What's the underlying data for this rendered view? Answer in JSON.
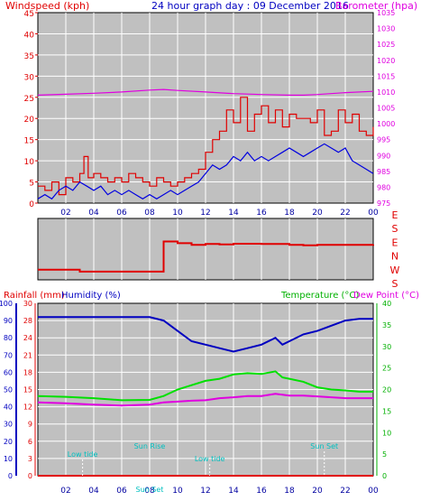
{
  "header": {
    "left_label": "Windspeed (kph)",
    "center_label": "24 hour graph day : 09 December 2016",
    "right_label": "Barometer (hpa)"
  },
  "colors": {
    "panel_bg": "#c0c0c0",
    "grid": "#ffffff",
    "wind_gust": "#e00000",
    "wind_avg": "#0000e0",
    "barometer": "#e000e0",
    "direction": "#e00000",
    "humidity": "#0000c0",
    "temperature": "#00e000",
    "dewpoint": "#e000e0",
    "rain": "#e00000",
    "sun_events": "#00c0c0"
  },
  "x_ticks": [
    "02",
    "04",
    "06",
    "08",
    "10",
    "12",
    "14",
    "16",
    "18",
    "20",
    "22",
    "00"
  ],
  "panel1": {
    "left_axis_ticks": [
      "45",
      "40",
      "35",
      "30",
      "25",
      "20",
      "15",
      "10",
      "5",
      "0"
    ],
    "right_axis_ticks": [
      "1035",
      "1030",
      "1025",
      "1020",
      "1015",
      "1010",
      "1005",
      "1000",
      "995",
      "990",
      "985",
      "980",
      "975"
    ]
  },
  "panel2": {
    "direction_labels": [
      "E",
      "S",
      "E",
      "N",
      "W",
      "S"
    ]
  },
  "panel3": {
    "left_label_a": "Rainfall (mm)",
    "left_label_b": "Humidity (%)",
    "right_label_a": "Temperature (°C)",
    "right_label_b": "Dew Point (°C)",
    "humidity_ticks": [
      "100",
      "90",
      "80",
      "70",
      "60",
      "50",
      "40",
      "30",
      "20",
      "10",
      "0"
    ],
    "rain_ticks": [
      "30",
      "28",
      "24",
      "21",
      "18",
      "15",
      "12",
      "9",
      "6",
      "3",
      "0"
    ],
    "temp_ticks": [
      "40",
      "35",
      "30",
      "25",
      "20",
      "15",
      "10",
      "5",
      "0"
    ],
    "events": [
      {
        "label": "Low tide",
        "x": 3.2,
        "y": "low"
      },
      {
        "label": "Sun Rise",
        "x": 8.0,
        "y": "high"
      },
      {
        "label": "Sun Set",
        "x": 8.0,
        "y": "bottom"
      },
      {
        "label": "Low tide",
        "x": 12.3,
        "y": "mid"
      },
      {
        "label": "Sun Set",
        "x": 20.5,
        "y": "high"
      }
    ]
  },
  "chart_data": [
    {
      "type": "line",
      "title": "24 hour graph day : 09 December 2016",
      "x_range_hours": [
        0,
        24
      ],
      "ylabel": "Windspeed (kph)",
      "ylim": [
        0,
        45
      ],
      "y2label": "Barometer (hpa)",
      "y2lim": [
        975,
        1035
      ],
      "series": [
        {
          "axis": "left",
          "color": "#e00000",
          "x": [
            0,
            0.5,
            1,
            1.5,
            2,
            2.5,
            3,
            3.3,
            3.6,
            4,
            4.5,
            5,
            5.5,
            6,
            6.5,
            7,
            7.5,
            8,
            8.5,
            9,
            9.5,
            10,
            10.5,
            11,
            11.5,
            12,
            12.5,
            13,
            13.5,
            14,
            14.5,
            15,
            15.5,
            16,
            16.5,
            17,
            17.5,
            18,
            18.5,
            19,
            19.5,
            20,
            20.5,
            21,
            21.5,
            22,
            22.5,
            23,
            23.5,
            24
          ],
          "values": [
            4,
            3,
            5,
            2,
            6,
            5,
            7,
            11,
            6,
            7,
            6,
            5,
            6,
            5,
            7,
            6,
            5,
            4,
            6,
            5,
            4,
            5,
            6,
            7,
            8,
            12,
            15,
            17,
            22,
            19,
            25,
            17,
            21,
            23,
            19,
            22,
            18,
            21,
            20,
            20,
            19,
            22,
            16,
            17,
            22,
            19,
            21,
            17,
            16,
            18
          ]
        },
        {
          "axis": "left",
          "color": "#0000e0",
          "x": [
            0,
            0.5,
            1,
            1.5,
            2,
            2.5,
            3,
            3.5,
            4,
            4.5,
            5,
            5.5,
            6,
            6.5,
            7,
            7.5,
            8,
            8.5,
            9,
            9.5,
            10,
            10.5,
            11,
            11.5,
            12,
            12.5,
            13,
            13.5,
            14,
            14.5,
            15,
            15.5,
            16,
            16.5,
            17,
            17.5,
            18,
            18.5,
            19,
            19.5,
            20,
            20.5,
            21,
            21.5,
            22,
            22.5,
            23,
            23.5,
            24
          ],
          "values": [
            1,
            2,
            1,
            3,
            4,
            3,
            5,
            4,
            3,
            4,
            2,
            3,
            2,
            3,
            2,
            1,
            2,
            1,
            2,
            3,
            2,
            3,
            4,
            5,
            7,
            9,
            8,
            9,
            11,
            10,
            12,
            10,
            11,
            10,
            11,
            12,
            13,
            12,
            11,
            12,
            13,
            14,
            13,
            12,
            13,
            10,
            9,
            8,
            7
          ]
        },
        {
          "axis": "right",
          "color": "#e000e0",
          "x": [
            0,
            2,
            4,
            6,
            8,
            9,
            10,
            12,
            14,
            16,
            18,
            19,
            20,
            22,
            24
          ],
          "values": [
            1009,
            1009.3,
            1009.6,
            1010,
            1010.6,
            1010.8,
            1010.5,
            1010,
            1009.5,
            1009.2,
            1009,
            1009,
            1009.2,
            1009.8,
            1010.2
          ]
        }
      ]
    },
    {
      "type": "line",
      "ylabel": "Wind direction",
      "ylim": [
        0,
        360
      ],
      "series": [
        {
          "color": "#e00000",
          "x": [
            0,
            1,
            2,
            3,
            4,
            5,
            6,
            7,
            8,
            8.9,
            9,
            10,
            11,
            12,
            13,
            14,
            15,
            16,
            17,
            18,
            19,
            20,
            21,
            22,
            23,
            24
          ],
          "values": [
            60,
            60,
            60,
            48,
            48,
            48,
            48,
            48,
            48,
            48,
            225,
            215,
            205,
            210,
            208,
            212,
            212,
            210,
            210,
            205,
            203,
            205,
            205,
            205,
            205,
            208
          ]
        }
      ]
    },
    {
      "type": "line",
      "ylabel": "Humidity (%)",
      "ylim": [
        0,
        100
      ],
      "y2label": "Temperature (°C)",
      "y2lim": [
        0,
        40
      ],
      "series": [
        {
          "axis": "left",
          "name": "Humidity (%)",
          "color": "#0000c0",
          "x": [
            0,
            2,
            4,
            6,
            8,
            9,
            10,
            11,
            12,
            13,
            14,
            15,
            16,
            17,
            17.5,
            18,
            19,
            20,
            21,
            22,
            23,
            24
          ],
          "values": [
            92,
            92,
            92,
            92,
            92,
            90,
            84,
            78,
            76,
            74,
            72,
            74,
            76,
            80,
            76,
            78,
            82,
            84,
            87,
            90,
            91,
            91
          ]
        },
        {
          "axis": "right",
          "name": "Temperature (°C)",
          "color": "#00e000",
          "x": [
            0,
            2,
            4,
            6,
            8,
            9,
            10,
            11,
            12,
            13,
            14,
            15,
            16,
            17,
            17.5,
            18,
            19,
            20,
            21,
            22,
            23,
            24
          ],
          "values": [
            18.5,
            18.3,
            18,
            17.5,
            17.6,
            18.5,
            20,
            21,
            22,
            22.5,
            23.5,
            23.8,
            23.6,
            24.2,
            22.8,
            22.5,
            21.8,
            20.5,
            20,
            19.8,
            19.5,
            19.5
          ]
        },
        {
          "axis": "right",
          "name": "Dew Point (°C)",
          "color": "#e000e0",
          "x": [
            0,
            2,
            4,
            6,
            8,
            9,
            10,
            11,
            12,
            13,
            14,
            15,
            16,
            17,
            18,
            19,
            20,
            21,
            22,
            23,
            24
          ],
          "values": [
            17,
            16.8,
            16.5,
            16.3,
            16.5,
            17,
            17.2,
            17.4,
            17.5,
            18,
            18.2,
            18.5,
            18.5,
            19,
            18.6,
            18.6,
            18.4,
            18.2,
            18,
            18,
            18
          ]
        },
        {
          "axis": "left",
          "name": "Rainfall (mm)",
          "color": "#e00000",
          "x": [
            0,
            24
          ],
          "values": [
            0,
            0
          ]
        }
      ]
    }
  ]
}
